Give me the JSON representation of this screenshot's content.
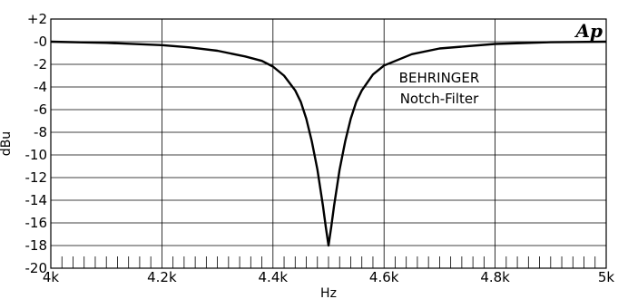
{
  "chart_data": {
    "type": "line",
    "xlabel": "Hz",
    "ylabel": "dBu",
    "xlim": [
      4000,
      5000
    ],
    "ylim": [
      -20,
      2
    ],
    "grid": true,
    "x_tick_values": [
      4000,
      4200,
      4400,
      4600,
      4800,
      5000
    ],
    "x_tick_labels": [
      "4k",
      "4.2k",
      "4.4k",
      "4.6k",
      "4.8k",
      "5k"
    ],
    "y_tick_values": [
      2,
      0,
      -2,
      -4,
      -6,
      -8,
      -10,
      -12,
      -14,
      -16,
      -18,
      -20
    ],
    "y_tick_labels": [
      "+2",
      "-0",
      "-2",
      "-4",
      "-6",
      "-8",
      "-10",
      "-12",
      "-14",
      "-16",
      "-18",
      "-20"
    ],
    "minor_x_step": 20,
    "annotations": [
      "BEHRINGER",
      "Notch-Filter"
    ],
    "logo": "Ap",
    "series": [
      {
        "color": "#000000",
        "x": [
          4000,
          4100,
          4200,
          4250,
          4300,
          4350,
          4380,
          4400,
          4420,
          4440,
          4450,
          4460,
          4470,
          4480,
          4490,
          4495,
          4500,
          4505,
          4510,
          4520,
          4530,
          4540,
          4550,
          4560,
          4580,
          4600,
          4650,
          4700,
          4800,
          4900,
          5000
        ],
        "y": [
          0,
          -0.1,
          -0.3,
          -0.5,
          -0.8,
          -1.3,
          -1.7,
          -2.2,
          -3.0,
          -4.3,
          -5.3,
          -6.8,
          -8.8,
          -11.3,
          -14.5,
          -16.3,
          -18.0,
          -16.3,
          -14.5,
          -11.3,
          -8.8,
          -6.8,
          -5.3,
          -4.3,
          -2.9,
          -2.1,
          -1.1,
          -0.6,
          -0.2,
          -0.05,
          0
        ]
      }
    ]
  }
}
